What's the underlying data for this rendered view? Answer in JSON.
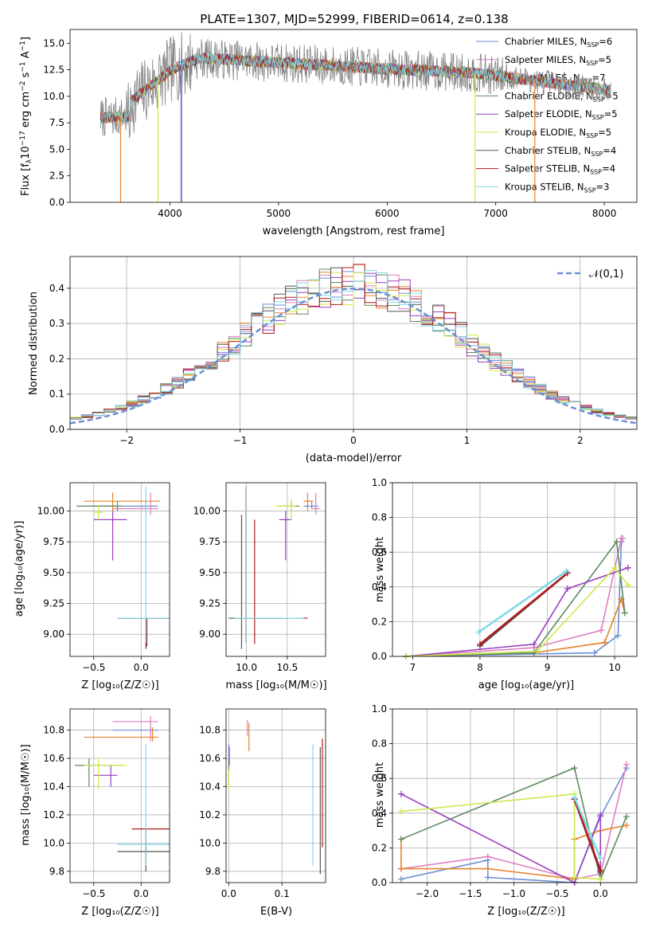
{
  "figure": {
    "title": "PLATE=1307, MJD=52999, FIBERID=0614, z=0.138"
  },
  "models": [
    {
      "name": "Chabrier MILES",
      "nssp": "6",
      "color": "#6a8fd6"
    },
    {
      "name": "Salpeter MILES",
      "nssp": "5",
      "color": "#e07fc0"
    },
    {
      "name": "Kroupa MILES",
      "nssp": "7",
      "color": "#e8822a"
    },
    {
      "name": "Chabrier ELODIE",
      "nssp": "5",
      "color": "#5e8a5e"
    },
    {
      "name": "Salpeter ELODIE",
      "nssp": "5",
      "color": "#9a3fbf"
    },
    {
      "name": "Kroupa ELODIE",
      "nssp": "5",
      "color": "#cde84a"
    },
    {
      "name": "Chabrier STELIB",
      "nssp": "4",
      "color": "#555555"
    },
    {
      "name": "Salpeter STELIB",
      "nssp": "4",
      "color": "#b31b1b"
    },
    {
      "name": "Kroupa STELIB",
      "nssp": "3",
      "color": "#7fd8e6"
    }
  ],
  "chart_data": [
    {
      "id": "spectrum",
      "type": "line",
      "xlabel": "wavelength [Angstrom, rest frame]",
      "ylabel_parts": {
        "a": "Flux [f",
        "b": "λ",
        "c": "10",
        "d": "−17",
        "e": " erg cm",
        "f": "−2",
        "g": " s",
        "h": "−1",
        "i": " A",
        "j": "−1",
        "k": "]"
      },
      "xlim": [
        3080,
        8300
      ],
      "ylim": [
        0,
        16.3
      ],
      "xticks": [
        4000,
        5000,
        6000,
        7000,
        8000
      ],
      "yticks": [
        0.0,
        2.5,
        5.0,
        7.5,
        10.0,
        12.5,
        15.0
      ],
      "ytick_labels": [
        "0.0",
        "2.5",
        "5.0",
        "7.5",
        "10.0",
        "12.5",
        "15.0"
      ],
      "data_range": [
        3360,
        8060
      ],
      "legend": "upper right"
    },
    {
      "id": "residuals",
      "type": "histogram",
      "xlabel": "(data-model)/error",
      "ylabel": "Normed distribution",
      "xlim": [
        -2.5,
        2.5
      ],
      "ylim": [
        0,
        0.49
      ],
      "xticks": [
        -2,
        -1,
        0,
        1,
        2
      ],
      "xtick_labels": [
        "−2",
        "−1",
        "0",
        "1",
        "2"
      ],
      "yticks": [
        0.0,
        0.1,
        0.2,
        0.3,
        0.4
      ],
      "ytick_labels": [
        "0.0",
        "0.1",
        "0.2",
        "0.3",
        "0.4"
      ],
      "bin_width": 0.1,
      "reference": {
        "label": "𝒩(0,1)",
        "color": "#6a8fd6",
        "mean": 0,
        "sigma": 1
      },
      "grid": true,
      "legend": "upper right"
    },
    {
      "id": "age_vs_Z",
      "type": "errorbar",
      "xlabel": "Z [log₁₀(Z/Z☉)]",
      "ylabel": "age  [log₁₀(age/yr)]",
      "xlim": [
        -0.75,
        0.3
      ],
      "ylim": [
        8.82,
        10.23
      ],
      "xticks": [
        -0.5,
        0.0
      ],
      "xtick_labels": [
        "−0.5",
        "0.0"
      ],
      "yticks": [
        9.0,
        9.25,
        9.5,
        9.75,
        10.0
      ],
      "ytick_labels": [
        "9.00",
        "9.25",
        "9.50",
        "9.75",
        "10.00"
      ],
      "points": [
        {
          "x": 0.05,
          "y": 10.04,
          "xlo": -0.6,
          "xhi": 0.18,
          "ylo": 10.02,
          "yhi": 10.08
        },
        {
          "x": 0.1,
          "y": 10.02,
          "xlo": -0.3,
          "xhi": 0.18,
          "ylo": 9.97,
          "yhi": 10.15
        },
        {
          "x": -0.3,
          "y": 10.08,
          "xlo": -0.6,
          "xhi": 0.2,
          "ylo": 10.0,
          "yhi": 10.15
        },
        {
          "x": -0.25,
          "y": 10.04,
          "xlo": -0.68,
          "xhi": -0.2,
          "ylo": 10.0,
          "yhi": 10.08
        },
        {
          "x": -0.3,
          "y": 9.93,
          "xlo": -0.5,
          "xhi": -0.15,
          "ylo": 9.6,
          "yhi": 10.0
        },
        {
          "x": -0.45,
          "y": 9.99,
          "xlo": -0.5,
          "xhi": -0.4,
          "ylo": 9.93,
          "yhi": 10.05
        },
        {
          "x": 0.05,
          "y": 9.13,
          "xlo": -0.25,
          "xhi": 0.3,
          "ylo": 8.88,
          "yhi": 9.13
        },
        {
          "x": 0.06,
          "y": 9.13,
          "xlo": -0.25,
          "xhi": 0.3,
          "ylo": 8.9,
          "yhi": 9.13
        },
        {
          "x": 0.05,
          "y": 9.13,
          "xlo": -0.25,
          "xhi": 0.3,
          "ylo": 8.93,
          "yhi": 10.2
        }
      ]
    },
    {
      "id": "age_vs_mass",
      "type": "errorbar",
      "xlabel": "mass [log₁₀(M/M☉)]",
      "ylabel": "",
      "xlim": [
        9.75,
        10.97
      ],
      "ylim": [
        8.82,
        10.23
      ],
      "xticks": [
        10.0,
        10.5
      ],
      "xtick_labels": [
        "10.0",
        "10.5"
      ],
      "yticks": [
        9.0,
        9.25,
        9.5,
        9.75,
        10.0
      ],
      "ytick_labels": [
        "9.00",
        "9.25",
        "9.50",
        "9.75",
        "10.00"
      ],
      "points": [
        {
          "x": 10.8,
          "y": 10.04,
          "xlo": 10.7,
          "xhi": 10.88,
          "ylo": 10.02,
          "yhi": 10.08
        },
        {
          "x": 10.85,
          "y": 10.02,
          "xlo": 10.8,
          "xhi": 10.9,
          "ylo": 9.97,
          "yhi": 10.15
        },
        {
          "x": 10.75,
          "y": 10.08,
          "xlo": 10.7,
          "xhi": 10.82,
          "ylo": 10.0,
          "yhi": 10.15
        },
        {
          "x": 10.55,
          "y": 10.04,
          "xlo": 10.4,
          "xhi": 10.65,
          "ylo": 10.0,
          "yhi": 10.08
        },
        {
          "x": 10.48,
          "y": 9.93,
          "xlo": 10.4,
          "xhi": 10.55,
          "ylo": 9.6,
          "yhi": 10.0
        },
        {
          "x": 10.55,
          "y": 10.04,
          "xlo": 10.35,
          "xhi": 10.6,
          "ylo": 9.93,
          "yhi": 10.1
        },
        {
          "x": 9.94,
          "y": 9.13,
          "xlo": 9.78,
          "xhi": 10.5,
          "ylo": 8.88,
          "yhi": 9.97
        },
        {
          "x": 10.1,
          "y": 9.13,
          "xlo": 9.85,
          "xhi": 10.75,
          "ylo": 8.92,
          "yhi": 9.93
        },
        {
          "x": 9.99,
          "y": 9.13,
          "xlo": 9.85,
          "xhi": 10.7,
          "ylo": 8.93,
          "yhi": 10.2
        }
      ]
    },
    {
      "id": "weight_vs_age",
      "type": "line",
      "xlabel": "age  [log₁₀(age/yr)]",
      "ylabel": "mass weight",
      "xlim": [
        6.7,
        10.33
      ],
      "ylim": [
        0,
        1.0
      ],
      "xticks": [
        7,
        8,
        9,
        10
      ],
      "xtick_labels": [
        "7",
        "8",
        "9",
        "10"
      ],
      "yticks": [
        0.0,
        0.2,
        0.4,
        0.6,
        0.8,
        1.0
      ],
      "ytick_labels": [
        "0.0",
        "0.2",
        "0.4",
        "0.6",
        "0.8",
        "1.0"
      ],
      "grid": true,
      "series": [
        {
          "x": [
            6.9,
            9.7,
            10.05,
            10.1
          ],
          "y": [
            0.0,
            0.02,
            0.12,
            0.66
          ]
        },
        {
          "x": [
            6.9,
            8.8,
            9.8,
            10.1,
            10.12
          ],
          "y": [
            0.0,
            0.05,
            0.15,
            0.68,
            0.68
          ]
        },
        {
          "x": [
            6.9,
            8.8,
            9.85,
            10.1,
            10.15
          ],
          "y": [
            0.0,
            0.02,
            0.08,
            0.33,
            0.25
          ]
        },
        {
          "x": [
            6.9,
            8.8,
            10.03,
            10.15
          ],
          "y": [
            0.0,
            0.02,
            0.66,
            0.25
          ]
        },
        {
          "x": [
            6.9,
            8.8,
            9.3,
            10.2
          ],
          "y": [
            0.0,
            0.07,
            0.39,
            0.51
          ]
        },
        {
          "x": [
            6.9,
            8.85,
            10.0,
            10.2
          ],
          "y": [
            0.0,
            0.03,
            0.51,
            0.41
          ]
        },
        {
          "x": [
            8.0,
            9.3
          ],
          "y": [
            0.06,
            0.48
          ]
        },
        {
          "x": [
            8.0,
            9.3
          ],
          "y": [
            0.07,
            0.48
          ]
        },
        {
          "x": [
            7.98,
            9.28
          ],
          "y": [
            0.14,
            0.49
          ]
        }
      ]
    },
    {
      "id": "mass_vs_Z",
      "type": "errorbar",
      "xlabel": "Z [log₁₀(Z/Z☉)]",
      "ylabel": "mass [log₁₀(M/M☉)]",
      "xlim": [
        -0.75,
        0.3
      ],
      "ylim": [
        9.72,
        10.95
      ],
      "xticks": [
        -0.5,
        0.0
      ],
      "xtick_labels": [
        "−0.5",
        "0.0"
      ],
      "yticks": [
        9.8,
        10.0,
        10.2,
        10.4,
        10.6,
        10.8
      ],
      "ytick_labels": [
        "9.8",
        "10.0",
        "10.2",
        "10.4",
        "10.6",
        "10.8"
      ],
      "points": [
        {
          "x": 0.1,
          "y": 10.8,
          "xlo": -0.3,
          "xhi": 0.18,
          "ylo": 10.78,
          "yhi": 10.82
        },
        {
          "x": 0.1,
          "y": 10.86,
          "xlo": -0.3,
          "xhi": 0.18,
          "ylo": 10.72,
          "yhi": 10.9
        },
        {
          "x": 0.12,
          "y": 10.75,
          "xlo": -0.6,
          "xhi": 0.18,
          "ylo": 10.72,
          "yhi": 10.82
        },
        {
          "x": -0.55,
          "y": 10.55,
          "xlo": -0.7,
          "xhi": -0.2,
          "ylo": 10.4,
          "yhi": 10.6
        },
        {
          "x": -0.32,
          "y": 10.48,
          "xlo": -0.5,
          "xhi": -0.25,
          "ylo": 10.4,
          "yhi": 10.55
        },
        {
          "x": -0.45,
          "y": 10.55,
          "xlo": -0.6,
          "xhi": -0.15,
          "ylo": 10.38,
          "yhi": 10.6
        },
        {
          "x": 0.05,
          "y": 9.94,
          "xlo": -0.25,
          "xhi": 0.3,
          "ylo": 9.8,
          "yhi": 10.0
        },
        {
          "x": 0.05,
          "y": 10.1,
          "xlo": -0.1,
          "xhi": 0.3,
          "ylo": 9.85,
          "yhi": 10.1
        },
        {
          "x": 0.05,
          "y": 9.99,
          "xlo": -0.25,
          "xhi": 0.3,
          "ylo": 9.84,
          "yhi": 10.7
        }
      ]
    },
    {
      "id": "mass_vs_ebv",
      "type": "errorbar",
      "xlabel": "E(B-V)",
      "ylabel": "",
      "xlim": [
        -0.005,
        0.182
      ],
      "ylim": [
        9.72,
        10.95
      ],
      "xticks": [
        0.0,
        0.1
      ],
      "xtick_labels": [
        "0.0",
        "0.1"
      ],
      "yticks": [
        9.8,
        10.0,
        10.2,
        10.4,
        10.6,
        10.8
      ],
      "ytick_labels": [
        "9.8",
        "10.0",
        "10.2",
        "10.4",
        "10.6",
        "10.8"
      ],
      "points": [
        {
          "x": 0.0,
          "y": 10.65,
          "ylo": 10.6,
          "yhi": 10.7
        },
        {
          "x": 0.035,
          "y": 10.82,
          "ylo": 10.76,
          "yhi": 10.87
        },
        {
          "x": 0.038,
          "y": 10.75,
          "ylo": 10.65,
          "yhi": 10.85
        },
        {
          "x": 0.0,
          "y": 10.55,
          "ylo": 10.4,
          "yhi": 10.6
        },
        {
          "x": 0.001,
          "y": 10.62,
          "ylo": 10.55,
          "yhi": 10.68
        },
        {
          "x": 0.0,
          "y": 10.45,
          "ylo": 10.38,
          "yhi": 10.52
        },
        {
          "x": 0.172,
          "y": 10.2,
          "ylo": 9.78,
          "yhi": 10.68
        },
        {
          "x": 0.176,
          "y": 10.3,
          "ylo": 9.97,
          "yhi": 10.74
        },
        {
          "x": 0.158,
          "y": 10.2,
          "ylo": 9.84,
          "yhi": 10.7
        }
      ]
    },
    {
      "id": "weight_vs_Z",
      "type": "line",
      "xlabel": "Z [log₁₀(Z/Z☉)]",
      "ylabel": "mass weight",
      "xlim": [
        -2.4,
        0.42
      ],
      "ylim": [
        0,
        1.0
      ],
      "xticks": [
        -2.0,
        -1.5,
        -1.0,
        -0.5,
        0.0
      ],
      "xtick_labels": [
        "−2.0",
        "−1.5",
        "−1.0",
        "−0.5",
        "0.0"
      ],
      "yticks": [
        0.0,
        0.2,
        0.4,
        0.6,
        0.8,
        1.0
      ],
      "ytick_labels": [
        "0.0",
        "0.2",
        "0.4",
        "0.6",
        "0.8",
        "1.0"
      ],
      "grid": true,
      "series": [
        {
          "x": [
            -2.3,
            -1.3,
            -1.3,
            -0.3,
            0.0,
            0.3
          ],
          "y": [
            0.02,
            0.13,
            0.03,
            0.0,
            0.38,
            0.66
          ]
        },
        {
          "x": [
            -2.3,
            -1.3,
            -0.3,
            0.0,
            0.3
          ],
          "y": [
            0.08,
            0.15,
            0.02,
            0.05,
            0.68
          ]
        },
        {
          "x": [
            -2.3,
            -2.3,
            -1.3,
            -0.3,
            -0.3,
            0.0,
            0.3
          ],
          "y": [
            0.25,
            0.08,
            0.08,
            0.02,
            0.25,
            0.3,
            0.33
          ]
        },
        {
          "x": [
            -2.3,
            -0.3,
            0.0,
            0.3
          ],
          "y": [
            0.25,
            0.66,
            0.02,
            0.38
          ]
        },
        {
          "x": [
            -2.3,
            -0.3,
            0.0,
            0.0
          ],
          "y": [
            0.51,
            0.0,
            0.39,
            0.07
          ]
        },
        {
          "x": [
            -2.3,
            -0.3,
            -0.3,
            0.0
          ],
          "y": [
            0.41,
            0.51,
            0.03,
            0.02
          ]
        },
        {
          "x": [
            -0.3,
            0.0
          ],
          "y": [
            0.48,
            0.06
          ]
        },
        {
          "x": [
            -0.3,
            0.0
          ],
          "y": [
            0.48,
            0.07
          ]
        },
        {
          "x": [
            -0.3,
            0.0
          ],
          "y": [
            0.49,
            0.14
          ]
        }
      ]
    }
  ]
}
